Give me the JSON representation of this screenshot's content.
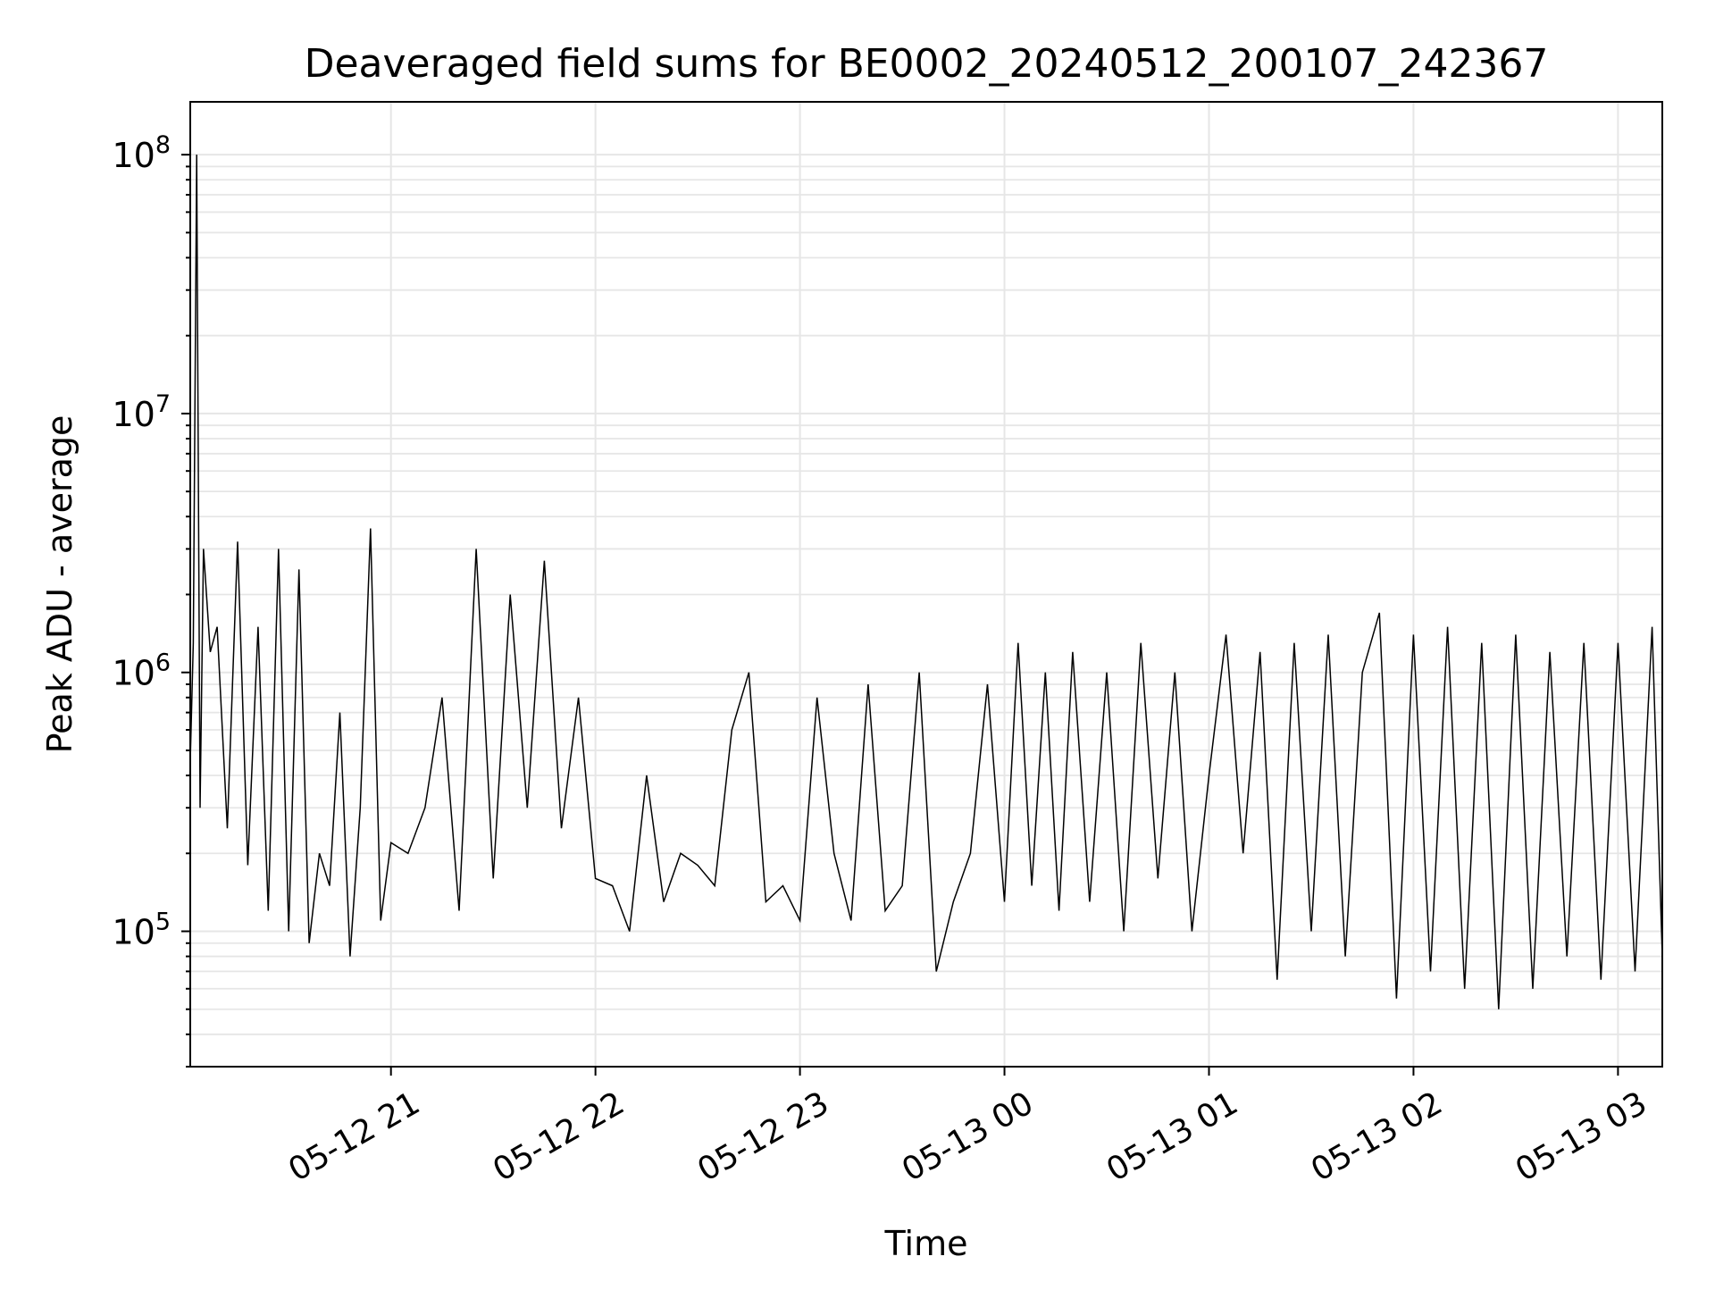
{
  "chart_data": {
    "type": "line",
    "title": "Deaveraged field sums for BE0002_20240512_200107_242367",
    "xlabel": "Time",
    "ylabel": "Peak ADU - average",
    "y_scale": "log",
    "ylim": [
      30000,
      160000000
    ],
    "xlim": [
      "2024-05-12 20:01:07",
      "2024-05-13 03:13:00"
    ],
    "grid": true,
    "grid_color": "#e6e6e6",
    "line_color": "#000000",
    "x_ticks": [
      {
        "value": "2024-05-12 21:00",
        "label": "05-12 21"
      },
      {
        "value": "2024-05-12 22:00",
        "label": "05-12 22"
      },
      {
        "value": "2024-05-12 23:00",
        "label": "05-12 23"
      },
      {
        "value": "2024-05-13 00:00",
        "label": "05-13 00"
      },
      {
        "value": "2024-05-13 01:00",
        "label": "05-13 01"
      },
      {
        "value": "2024-05-13 02:00",
        "label": "05-13 02"
      },
      {
        "value": "2024-05-13 03:00",
        "label": "05-13 03"
      }
    ],
    "y_ticks": [
      {
        "value": 100000,
        "base": "10",
        "exp": "5"
      },
      {
        "value": 1000000,
        "base": "10",
        "exp": "6"
      },
      {
        "value": 10000000,
        "base": "10",
        "exp": "7"
      },
      {
        "value": 100000000,
        "base": "10",
        "exp": "8"
      }
    ],
    "series": [
      {
        "x": [
          "2024-05-12 20:01",
          "2024-05-12 20:02",
          "2024-05-12 20:03",
          "2024-05-12 20:04",
          "2024-05-12 20:05",
          "2024-05-12 20:07",
          "2024-05-12 20:09",
          "2024-05-12 20:12",
          "2024-05-12 20:15",
          "2024-05-12 20:18",
          "2024-05-12 20:21",
          "2024-05-12 20:24",
          "2024-05-12 20:27",
          "2024-05-12 20:30",
          "2024-05-12 20:33",
          "2024-05-12 20:36",
          "2024-05-12 20:39",
          "2024-05-12 20:42",
          "2024-05-12 20:45",
          "2024-05-12 20:48",
          "2024-05-12 20:51",
          "2024-05-12 20:54",
          "2024-05-12 20:57",
          "2024-05-12 21:00",
          "2024-05-12 21:05",
          "2024-05-12 21:10",
          "2024-05-12 21:15",
          "2024-05-12 21:20",
          "2024-05-12 21:25",
          "2024-05-12 21:30",
          "2024-05-12 21:35",
          "2024-05-12 21:40",
          "2024-05-12 21:45",
          "2024-05-12 21:50",
          "2024-05-12 21:55",
          "2024-05-12 22:00",
          "2024-05-12 22:05",
          "2024-05-12 22:10",
          "2024-05-12 22:15",
          "2024-05-12 22:20",
          "2024-05-12 22:25",
          "2024-05-12 22:30",
          "2024-05-12 22:35",
          "2024-05-12 22:40",
          "2024-05-12 22:45",
          "2024-05-12 22:50",
          "2024-05-12 22:55",
          "2024-05-12 23:00",
          "2024-05-12 23:05",
          "2024-05-12 23:10",
          "2024-05-12 23:15",
          "2024-05-12 23:20",
          "2024-05-12 23:25",
          "2024-05-12 23:30",
          "2024-05-12 23:35",
          "2024-05-12 23:40",
          "2024-05-12 23:45",
          "2024-05-12 23:50",
          "2024-05-12 23:55",
          "2024-05-13 00:00",
          "2024-05-13 00:04",
          "2024-05-13 00:08",
          "2024-05-13 00:12",
          "2024-05-13 00:16",
          "2024-05-13 00:20",
          "2024-05-13 00:25",
          "2024-05-13 00:30",
          "2024-05-13 00:35",
          "2024-05-13 00:40",
          "2024-05-13 00:45",
          "2024-05-13 00:50",
          "2024-05-13 00:55",
          "2024-05-13 01:00",
          "2024-05-13 01:05",
          "2024-05-13 01:10",
          "2024-05-13 01:15",
          "2024-05-13 01:20",
          "2024-05-13 01:25",
          "2024-05-13 01:30",
          "2024-05-13 01:35",
          "2024-05-13 01:40",
          "2024-05-13 01:45",
          "2024-05-13 01:50",
          "2024-05-13 01:55",
          "2024-05-13 02:00",
          "2024-05-13 02:05",
          "2024-05-13 02:10",
          "2024-05-13 02:15",
          "2024-05-13 02:20",
          "2024-05-13 02:25",
          "2024-05-13 02:30",
          "2024-05-13 02:35",
          "2024-05-13 02:40",
          "2024-05-13 02:45",
          "2024-05-13 02:50",
          "2024-05-13 02:55",
          "2024-05-13 03:00",
          "2024-05-13 03:05",
          "2024-05-13 03:10",
          "2024-05-13 03:13"
        ],
        "y": [
          400000,
          1300000,
          100000000,
          300000,
          3000000,
          1200000,
          1500000,
          250000,
          3200000,
          180000,
          1500000,
          120000,
          3000000,
          100000,
          2500000,
          90000,
          200000,
          150000,
          700000,
          80000,
          300000,
          3600000,
          110000,
          220000,
          200000,
          300000,
          800000,
          120000,
          3000000,
          160000,
          2000000,
          300000,
          2700000,
          250000,
          800000,
          160000,
          150000,
          100000,
          400000,
          130000,
          200000,
          180000,
          150000,
          600000,
          1000000,
          130000,
          150000,
          110000,
          800000,
          200000,
          110000,
          900000,
          120000,
          150000,
          1000000,
          70000,
          130000,
          200000,
          900000,
          130000,
          1300000,
          150000,
          1000000,
          120000,
          1200000,
          130000,
          1000000,
          100000,
          1300000,
          160000,
          1000000,
          100000,
          400000,
          1400000,
          200000,
          1200000,
          65000,
          1300000,
          100000,
          1400000,
          80000,
          1000000,
          1700000,
          55000,
          1400000,
          70000,
          1500000,
          60000,
          1300000,
          50000,
          1400000,
          60000,
          1200000,
          80000,
          1300000,
          65000,
          1300000,
          70000,
          1500000,
          80000
        ],
        "note_ignore": ""
      }
    ]
  }
}
